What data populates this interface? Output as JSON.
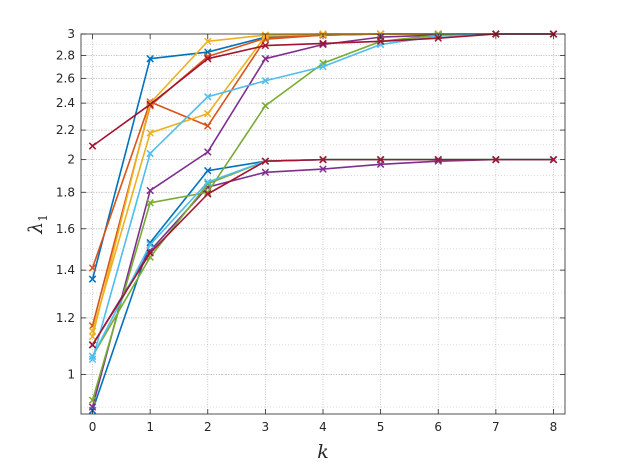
{
  "chart_data": {
    "type": "line",
    "xlabel": "k",
    "ylabel": {
      "main": "λ",
      "sub": "1"
    },
    "xlim": [
      -0.2,
      8.2
    ],
    "ylim": [
      0.88,
      3.0
    ],
    "yscale": "log",
    "grid": {
      "major": true,
      "minor": true,
      "style": "dotted"
    },
    "marker": "x",
    "x_ticks": [
      0,
      1,
      2,
      3,
      4,
      5,
      6,
      7,
      8
    ],
    "x_tick_labels": [
      "0",
      "1",
      "2",
      "3",
      "4",
      "5",
      "6",
      "7",
      "8"
    ],
    "y_ticks": [
      1,
      1.2,
      1.4,
      1.6,
      1.8,
      2,
      2.2,
      2.4,
      2.6,
      2.8,
      3
    ],
    "y_tick_labels": [
      "1",
      "1.2",
      "1.4",
      "1.6",
      "1.8",
      "2",
      "2.2",
      "2.4",
      "2.6",
      "2.8",
      "3"
    ],
    "series": [
      {
        "color": "#0072BD",
        "x": [
          0,
          1,
          2,
          3,
          4,
          5,
          6,
          7,
          8
        ],
        "y": [
          0.89,
          1.53,
          1.93,
          1.99,
          2.0,
          2.0,
          2.0,
          2.0,
          2.0
        ]
      },
      {
        "color": "#0072BD",
        "x": [
          0,
          1,
          2,
          3,
          4,
          5,
          6,
          7,
          8
        ],
        "y": [
          1.36,
          2.77,
          2.83,
          2.97,
          2.99,
          3.0,
          3.0,
          3.0,
          3.0
        ]
      },
      {
        "color": "#D95319",
        "x": [
          0,
          1,
          2,
          3,
          4,
          5,
          6,
          7,
          8
        ],
        "y": [
          1.41,
          2.41,
          2.23,
          2.95,
          2.99,
          3.0,
          3.0,
          3.0,
          3.0
        ]
      },
      {
        "color": "#D95319",
        "x": [
          0,
          1,
          2,
          3,
          4,
          5,
          6,
          7,
          8
        ],
        "y": [
          1.17,
          2.38,
          2.79,
          2.96,
          2.99,
          3.0,
          3.0,
          3.0,
          3.0
        ]
      },
      {
        "color": "#EDB120",
        "x": [
          0,
          1,
          2,
          3,
          4,
          5,
          6,
          7,
          8
        ],
        "y": [
          1.15,
          2.18,
          2.32,
          2.98,
          3.0,
          3.0,
          3.0,
          3.0,
          3.0
        ]
      },
      {
        "color": "#EDB120",
        "x": [
          0,
          1,
          2,
          3,
          4,
          5,
          6,
          7,
          8
        ],
        "y": [
          1.13,
          2.4,
          2.93,
          2.99,
          3.0,
          3.0,
          3.0,
          3.0,
          3.0
        ]
      },
      {
        "color": "#7E2F8E",
        "x": [
          0,
          1,
          2,
          3,
          4,
          5,
          6,
          7,
          8
        ],
        "y": [
          0.9,
          1.81,
          2.05,
          2.77,
          2.9,
          2.97,
          2.99,
          3.0,
          3.0
        ]
      },
      {
        "color": "#7E2F8E",
        "x": [
          0,
          1,
          2,
          3,
          4,
          5,
          6,
          7,
          8
        ],
        "y": [
          1.1,
          1.49,
          1.83,
          1.92,
          1.94,
          1.97,
          1.99,
          2.0,
          2.0
        ]
      },
      {
        "color": "#77AC30",
        "x": [
          0,
          1,
          2,
          3,
          4,
          5,
          6,
          7,
          8
        ],
        "y": [
          0.92,
          1.74,
          1.8,
          2.38,
          2.73,
          2.93,
          2.99,
          3.0,
          3.0
        ]
      },
      {
        "color": "#77AC30",
        "x": [
          0,
          1,
          2,
          3,
          4,
          5,
          6,
          7,
          8
        ],
        "y": [
          1.06,
          1.46,
          1.85,
          1.99,
          2.0,
          2.0,
          2.0,
          2.0,
          2.0
        ]
      },
      {
        "color": "#4DBEEE",
        "x": [
          0,
          1,
          2,
          3,
          4,
          5,
          6,
          7,
          8
        ],
        "y": [
          1.05,
          2.04,
          2.45,
          2.58,
          2.7,
          2.9,
          2.98,
          3.0,
          3.0
        ]
      },
      {
        "color": "#4DBEEE",
        "x": [
          0,
          1,
          2,
          3,
          4,
          5,
          6,
          7,
          8
        ],
        "y": [
          1.06,
          1.52,
          1.86,
          1.99,
          2.0,
          2.0,
          2.0,
          2.0,
          2.0
        ]
      },
      {
        "color": "#A2142F",
        "x": [
          0,
          1,
          2,
          3,
          4,
          5,
          6,
          7,
          8
        ],
        "y": [
          2.09,
          2.39,
          2.77,
          2.89,
          2.91,
          2.93,
          2.96,
          3.0,
          3.0
        ]
      },
      {
        "color": "#A2142F",
        "x": [
          0,
          1,
          2,
          3,
          4,
          5,
          6,
          7,
          8
        ],
        "y": [
          1.1,
          1.48,
          1.79,
          1.99,
          2.0,
          2.0,
          2.0,
          2.0,
          2.0
        ]
      }
    ]
  }
}
